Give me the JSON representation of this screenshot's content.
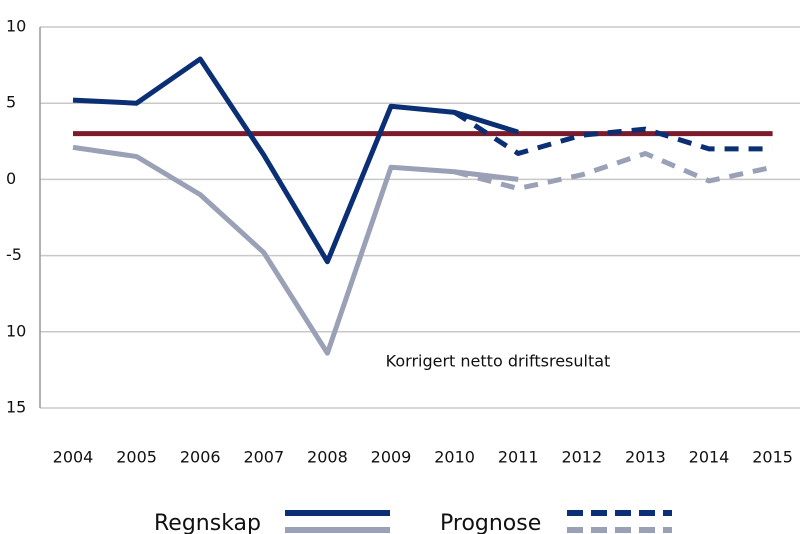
{
  "chart_data": {
    "type": "line",
    "categories": [
      "2004",
      "2005",
      "2006",
      "2007",
      "2008",
      "2009",
      "2010",
      "2011",
      "2012",
      "2013",
      "2014",
      "2015"
    ],
    "series": [
      {
        "color": "#7a1c2c",
        "dashed": false,
        "values": [
          3,
          3,
          3,
          3,
          3,
          3,
          3,
          3,
          3,
          3,
          3,
          3
        ]
      },
      {
        "color": "#9aa0b6",
        "dashed": false,
        "values": [
          2.1,
          1.5,
          -1.0,
          -4.8,
          -11.4,
          0.8,
          0.5,
          0.0,
          null,
          null,
          null,
          null
        ]
      },
      {
        "color": "#0b2f74",
        "dashed": false,
        "values": [
          5.2,
          5.0,
          7.9,
          1.6,
          -5.4,
          4.8,
          4.4,
          3.1,
          null,
          null,
          null,
          null
        ]
      },
      {
        "color": "#9aa0b6",
        "dashed": true,
        "values": [
          null,
          null,
          null,
          null,
          null,
          null,
          0.5,
          -0.6,
          0.3,
          1.7,
          -0.1,
          0.8
        ]
      },
      {
        "color": "#0b2f74",
        "dashed": true,
        "values": [
          null,
          null,
          null,
          null,
          null,
          null,
          4.4,
          1.7,
          2.9,
          3.3,
          2.0,
          2.0
        ]
      }
    ],
    "ylim": [
      -15,
      10
    ],
    "yticks": [
      10,
      5,
      0,
      -5,
      {
        "value": -10,
        "label": "10"
      },
      {
        "value": -15,
        "label": "15"
      }
    ],
    "grid": true,
    "annotation": "Korrigert netto driftsresultat",
    "legend": [
      {
        "name": "Regnskap",
        "dashed": false
      },
      {
        "name": "Prognose",
        "dashed": true
      }
    ]
  }
}
